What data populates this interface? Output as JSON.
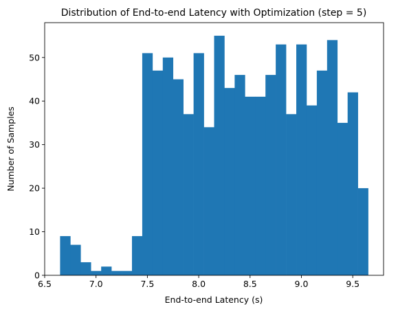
{
  "chart_data": {
    "type": "bar",
    "subtype": "histogram",
    "title": "Distribution of End-to-end Latency with Optimization (step = 5)",
    "xlabel": "End-to-end Latency (s)",
    "ylabel": "Number of Samples",
    "bin_edges": [
      6.65,
      6.75,
      6.85,
      6.95,
      7.05,
      7.15,
      7.25,
      7.35,
      7.45,
      7.55,
      7.65,
      7.75,
      7.85,
      7.95,
      8.05,
      8.15,
      8.25,
      8.35,
      8.45,
      8.55,
      8.65,
      8.75,
      8.85,
      8.95,
      9.05,
      9.15,
      9.25,
      9.35,
      9.45,
      9.55,
      9.65
    ],
    "values": [
      9,
      7,
      3,
      1,
      2,
      1,
      1,
      9,
      51,
      47,
      50,
      45,
      37,
      51,
      34,
      55,
      43,
      46,
      41,
      41,
      46,
      53,
      37,
      53,
      39,
      47,
      54,
      35,
      42,
      20
    ],
    "xlim": [
      6.5,
      9.8
    ],
    "ylim": [
      0,
      58
    ],
    "xticks": [
      "6.5",
      "7.0",
      "7.5",
      "8.0",
      "8.5",
      "9.0",
      "9.5"
    ],
    "xtick_values": [
      6.5,
      7.0,
      7.5,
      8.0,
      8.5,
      9.0,
      9.5
    ],
    "yticks": [
      "0",
      "10",
      "20",
      "30",
      "40",
      "50"
    ],
    "ytick_values": [
      0,
      10,
      20,
      30,
      40,
      50
    ],
    "bar_color": "#1f77b4",
    "grid": false,
    "legend": "none"
  }
}
